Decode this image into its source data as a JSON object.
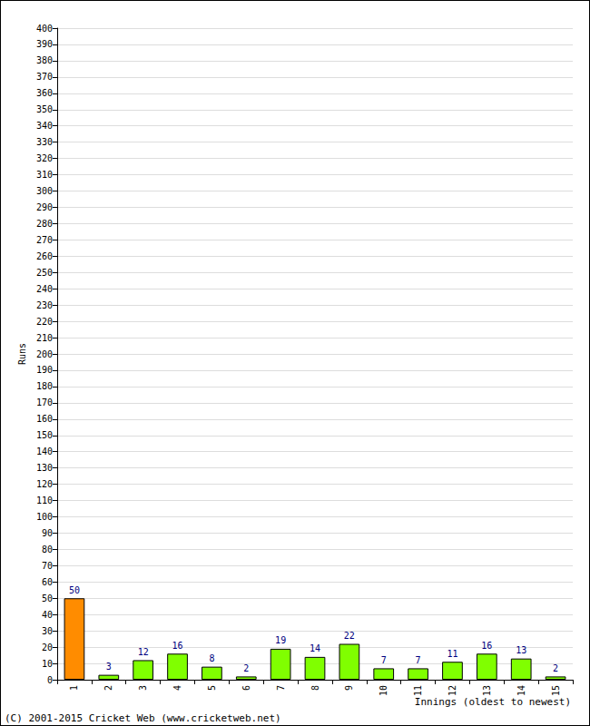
{
  "chart_data": {
    "type": "bar",
    "y_label": "Runs",
    "x_label": "Innings (oldest to newest)",
    "annotations": [
      "(C) 2001-2015 Cricket Web (www.cricketweb.net)"
    ],
    "categories": [
      "1",
      "2",
      "3",
      "4",
      "5",
      "6",
      "7",
      "8",
      "9",
      "10",
      "11",
      "12",
      "13",
      "14",
      "15"
    ],
    "values": [
      50,
      3,
      12,
      16,
      8,
      2,
      19,
      14,
      22,
      7,
      7,
      11,
      16,
      13,
      2
    ],
    "colors": [
      "#ff8c00",
      "#80ff00",
      "#80ff00",
      "#80ff00",
      "#80ff00",
      "#80ff00",
      "#80ff00",
      "#80ff00",
      "#80ff00",
      "#80ff00",
      "#80ff00",
      "#80ff00",
      "#80ff00",
      "#80ff00",
      "#80ff00"
    ],
    "ylim": [
      0,
      400
    ],
    "yticks": [
      0,
      10,
      20,
      30,
      40,
      50,
      60,
      70,
      80,
      90,
      100,
      110,
      120,
      130,
      140,
      150,
      160,
      170,
      180,
      190,
      200,
      210,
      220,
      230,
      240,
      250,
      260,
      270,
      280,
      290,
      300,
      310,
      320,
      330,
      340,
      350,
      360,
      370,
      380,
      390,
      400
    ],
    "grid": true,
    "data_labels": true
  }
}
